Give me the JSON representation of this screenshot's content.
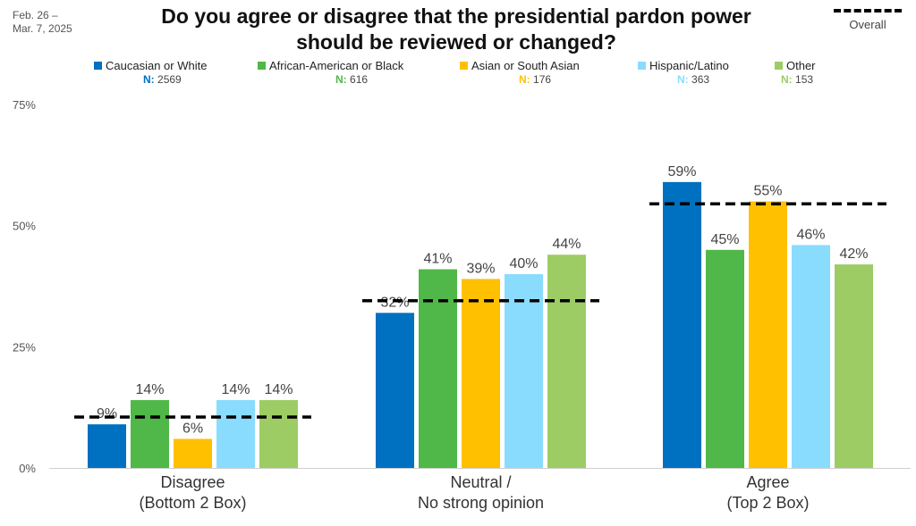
{
  "date_lines": [
    "Feb. 26 –",
    "Mar. 7, 2025"
  ],
  "title_lines": [
    "Do you agree or disagree that the presidential pardon power",
    "should be reviewed or changed?"
  ],
  "overall_label": "Overall",
  "n_prefix": "N:",
  "legend": [
    {
      "name": "Caucasian or White",
      "n": "2569",
      "color": "#0070C0"
    },
    {
      "name": "African-American or Black",
      "n": "616",
      "color": "#50B848"
    },
    {
      "name": "Asian or South Asian",
      "n": "176",
      "color": "#FFC000"
    },
    {
      "name": "Hispanic/Latino",
      "n": "363",
      "color": "#8ADCFF"
    },
    {
      "name": "Other",
      "n": "153",
      "color": "#9DCC64"
    }
  ],
  "chart_data": {
    "type": "bar",
    "title": "Do you agree or disagree that the presidential pardon power should be reviewed or changed?",
    "categories": [
      [
        "Disagree",
        "(Bottom 2 Box)"
      ],
      [
        "Neutral /",
        "No strong opinion"
      ],
      [
        "Agree",
        "(Top 2 Box)"
      ]
    ],
    "series": [
      {
        "name": "Caucasian or White",
        "values": [
          9,
          32,
          59
        ],
        "labels": [
          "9%",
          "32%",
          "59%"
        ],
        "color": "#0070C0"
      },
      {
        "name": "African-American or Black",
        "values": [
          14,
          41,
          45
        ],
        "labels": [
          "14%",
          "41%",
          "45%"
        ],
        "color": "#50B848"
      },
      {
        "name": "Asian or South Asian",
        "values": [
          6,
          39,
          55
        ],
        "labels": [
          "6%",
          "39%",
          "55%"
        ],
        "color": "#FFC000"
      },
      {
        "name": "Hispanic/Latino",
        "values": [
          14,
          40,
          46
        ],
        "labels": [
          "14%",
          "40%",
          "46%"
        ],
        "color": "#8ADCFF"
      },
      {
        "name": "Other",
        "values": [
          14,
          44,
          42
        ],
        "labels": [
          "14%",
          "44%",
          "42%"
        ],
        "color": "#9DCC64"
      }
    ],
    "overall": {
      "name": "Overall",
      "values": [
        10.5,
        34.5,
        54.5
      ]
    },
    "yticks": [
      "0%",
      "25%",
      "50%",
      "75%"
    ],
    "ytick_values": [
      0,
      25,
      50,
      75
    ],
    "ylim": [
      0,
      75
    ],
    "legend_position": "top",
    "grid": false
  }
}
